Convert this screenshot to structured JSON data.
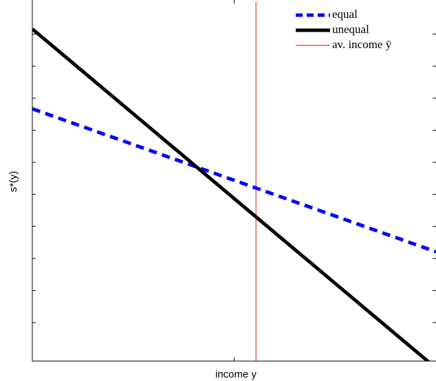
{
  "chart_data": {
    "type": "line",
    "xlabel": "income y",
    "ylabel": "s*(y)",
    "xlim": [
      0,
      1
    ],
    "ylim": [
      0,
      11.2
    ],
    "xticks": [
      0.5
    ],
    "yticks": [
      1.2,
      2.2,
      3.2,
      4.2,
      5.2,
      6.2,
      7.2,
      8.2,
      9.2,
      10.2
    ],
    "legend": "upper right",
    "series": [
      {
        "name": "equal",
        "color": "#0000ff",
        "dash": true,
        "x": [
          0,
          1
        ],
        "values": [
          7.87,
          3.41
        ]
      },
      {
        "name": "unequal",
        "color": "#000000",
        "dash": false,
        "x": [
          0,
          1
        ],
        "values": [
          10.36,
          -0.22
        ]
      }
    ],
    "vline": {
      "name": "av. income ȳ",
      "color": "#e8383d",
      "x": 0.554
    }
  }
}
